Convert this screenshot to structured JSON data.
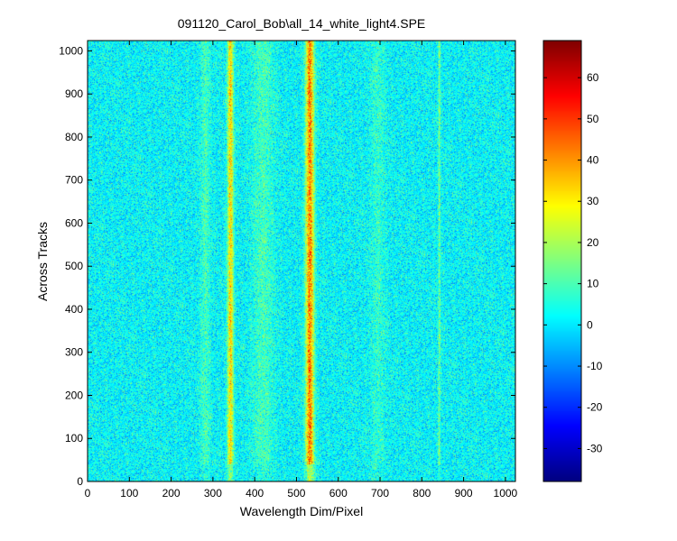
{
  "figure": {
    "background": "#ffffff"
  },
  "chart_data": {
    "type": "heatmap",
    "title": "091120_Carol_Bob\\all_14_white_light4.SPE",
    "xlabel": "Wavelength Dim/Pixel",
    "ylabel": "Across Tracks",
    "xlim": [
      0,
      1024
    ],
    "ylim": [
      0,
      1024
    ],
    "xticks": [
      0,
      100,
      200,
      300,
      400,
      500,
      600,
      700,
      800,
      900,
      1000
    ],
    "yticks": [
      0,
      100,
      200,
      300,
      400,
      500,
      600,
      700,
      800,
      900,
      1000
    ],
    "colormap": "jet",
    "clim": [
      -38,
      69
    ],
    "colorbar_ticks": [
      -30,
      -20,
      -10,
      0,
      10,
      20,
      30,
      40,
      50,
      60
    ],
    "background_mean": 2,
    "noise_level": 6,
    "bright_lines": [
      {
        "pixel": 342,
        "intensity": 30,
        "width": 5
      },
      {
        "pixel": 532,
        "intensity": 40,
        "width": 7
      },
      {
        "pixel": 282,
        "intensity": 7,
        "width": 8
      },
      {
        "pixel": 420,
        "intensity": 7,
        "width": 18
      },
      {
        "pixel": 695,
        "intensity": 5,
        "width": 12
      },
      {
        "pixel": 842,
        "intensity": 12,
        "width": 2
      }
    ]
  }
}
